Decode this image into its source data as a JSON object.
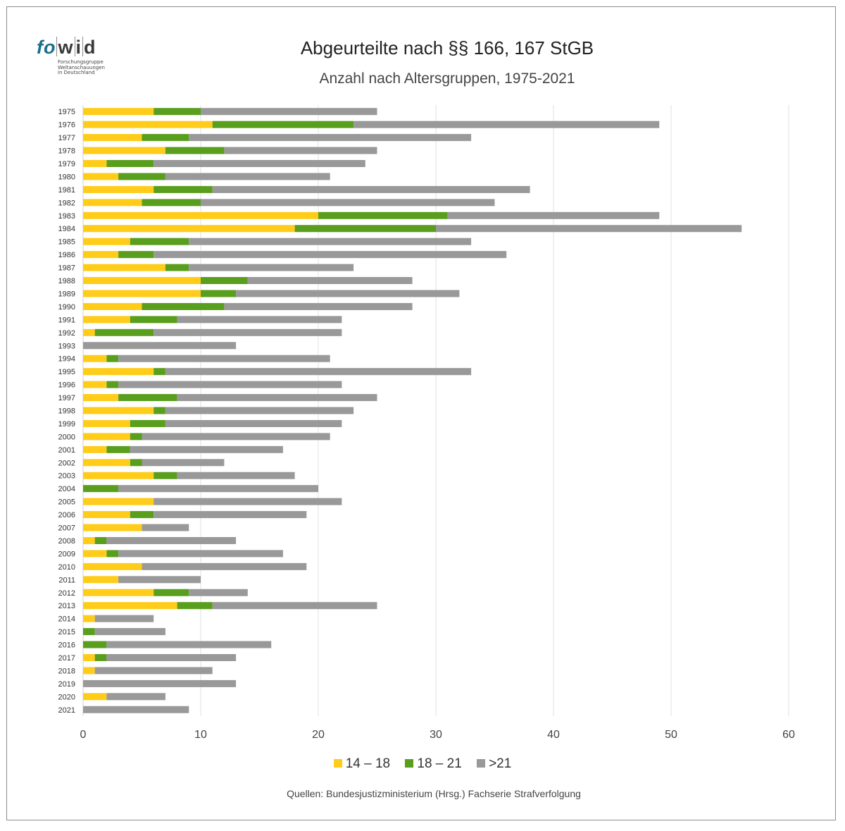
{
  "logo": {
    "fo": "fo",
    "wid": [
      "w",
      "i",
      "d"
    ],
    "subtitle_lines": [
      "Forschungsgruppe",
      "Weltanschauungen",
      "in Deutschland"
    ]
  },
  "chart_data": {
    "type": "bar",
    "orientation": "horizontal",
    "stacked": true,
    "title": "Abgeurteilte nach §§ 166, 167 StGB",
    "subtitle": "Anzahl nach Altersgruppen, 1975-2021",
    "categories": [
      "1975",
      "1976",
      "1977",
      "1978",
      "1979",
      "1980",
      "1981",
      "1982",
      "1983",
      "1984",
      "1985",
      "1986",
      "1987",
      "1988",
      "1989",
      "1990",
      "1991",
      "1992",
      "1993",
      "1994",
      "1995",
      "1996",
      "1997",
      "1998",
      "1999",
      "2000",
      "2001",
      "2002",
      "2003",
      "2004",
      "2005",
      "2006",
      "2007",
      "2008",
      "2009",
      "2010",
      "2011",
      "2012",
      "2013",
      "2014",
      "2015",
      "2016",
      "2017",
      "2018",
      "2019",
      "2020",
      "2021"
    ],
    "series": [
      {
        "name": "14 – 18",
        "color": "#ffcc1a",
        "values": [
          6,
          11,
          5,
          7,
          2,
          3,
          6,
          5,
          20,
          18,
          4,
          3,
          7,
          10,
          10,
          5,
          4,
          1,
          0,
          2,
          6,
          2,
          3,
          6,
          4,
          4,
          2,
          4,
          6,
          0,
          6,
          4,
          5,
          1,
          2,
          5,
          3,
          6,
          8,
          1,
          0,
          0,
          1,
          1,
          0,
          2,
          0
        ]
      },
      {
        "name": "18 – 21",
        "color": "#5a9e1e",
        "values": [
          4,
          12,
          4,
          5,
          4,
          4,
          5,
          5,
          11,
          12,
          5,
          3,
          2,
          4,
          3,
          7,
          4,
          5,
          0,
          1,
          1,
          1,
          5,
          1,
          3,
          1,
          2,
          1,
          2,
          3,
          0,
          2,
          0,
          1,
          1,
          0,
          0,
          3,
          3,
          0,
          1,
          2,
          1,
          0,
          0,
          0,
          0
        ]
      },
      {
        "name": ">21",
        "color": "#999999",
        "values": [
          15,
          26,
          24,
          13,
          18,
          14,
          27,
          25,
          18,
          26,
          24,
          30,
          14,
          14,
          19,
          16,
          14,
          16,
          13,
          18,
          26,
          19,
          17,
          16,
          15,
          16,
          13,
          7,
          10,
          17,
          16,
          13,
          4,
          11,
          14,
          14,
          7,
          5,
          14,
          5,
          6,
          14,
          11,
          10,
          13,
          5,
          9
        ]
      }
    ],
    "xlim": [
      0,
      60
    ],
    "x_ticks": [
      0,
      10,
      20,
      30,
      40,
      50,
      60
    ],
    "grid": "vertical",
    "legend_position": "bottom"
  },
  "source": "Quellen: Bundesjustizministerium (Hrsg.) Fachserie Strafverfolgung"
}
